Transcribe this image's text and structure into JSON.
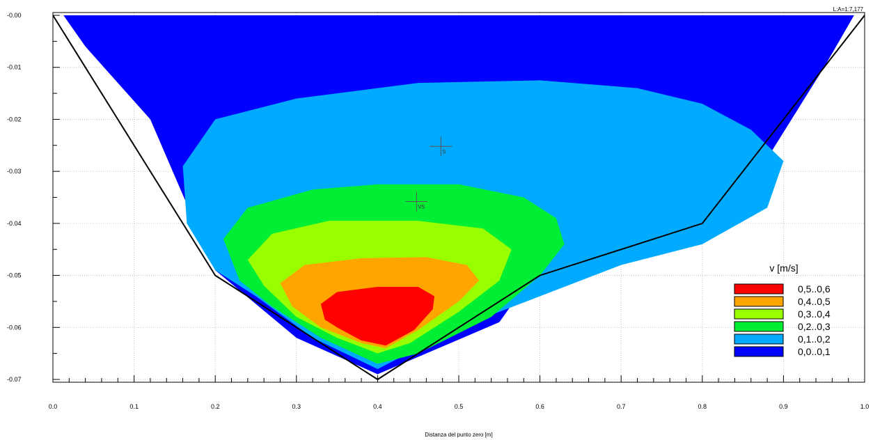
{
  "chart_data": {
    "type": "heatmap",
    "title": "",
    "xlabel": "Distanza del punto zero [m]",
    "ylabel": "",
    "xlim": [
      0.0,
      1.0
    ],
    "ylim": [
      -0.07,
      0.0
    ],
    "x_ticks": [
      "0.0",
      "0.1",
      "0.2",
      "0.3",
      "0.4",
      "0.5",
      "0.6",
      "0.7",
      "0.8",
      "0.9",
      "1.0"
    ],
    "y_ticks": [
      "-0.00",
      "-0.01",
      "-0.02",
      "-0.03",
      "-0.04",
      "-0.05",
      "-0.06",
      "-0.07"
    ],
    "grid": true,
    "scale_label": "L:A=1:7,177",
    "cross_section": {
      "x": [
        0.0,
        0.2,
        0.4,
        0.6,
        0.8,
        1.0
      ],
      "y": [
        0.0,
        -0.05,
        -0.07,
        -0.05,
        -0.04,
        0.0
      ]
    },
    "legend": {
      "title": "v  [m/s]",
      "placement": "right",
      "entries": [
        {
          "label": "0,5..0,6",
          "color": "#ff0000"
        },
        {
          "label": "0,4..0,5",
          "color": "#ffa500"
        },
        {
          "label": "0,3..0,4",
          "color": "#99ff00"
        },
        {
          "label": "0,2..0,3",
          "color": "#00ee33"
        },
        {
          "label": "0,1..0,2",
          "color": "#00aaff"
        },
        {
          "label": "0,0..0,1",
          "color": "#0000ff"
        }
      ]
    },
    "bands": [
      {
        "range": "0,0..0,1",
        "color": "#0000ff",
        "outline": [
          [
            0.013,
            0.0
          ],
          [
            0.987,
            0.0
          ],
          [
            0.95,
            -0.01
          ],
          [
            0.87,
            -0.03
          ],
          [
            0.8,
            -0.041
          ],
          [
            0.6,
            -0.048
          ],
          [
            0.55,
            -0.059
          ],
          [
            0.4,
            -0.069
          ],
          [
            0.3,
            -0.062
          ],
          [
            0.2,
            -0.049
          ],
          [
            0.12,
            -0.02
          ],
          [
            0.04,
            -0.006
          ]
        ]
      },
      {
        "range": "0,1..0,2",
        "color": "#00aaff",
        "outline": [
          [
            0.16,
            -0.029
          ],
          [
            0.2,
            -0.02
          ],
          [
            0.3,
            -0.016
          ],
          [
            0.45,
            -0.013
          ],
          [
            0.6,
            -0.0125
          ],
          [
            0.72,
            -0.014
          ],
          [
            0.8,
            -0.017
          ],
          [
            0.86,
            -0.022
          ],
          [
            0.9,
            -0.028
          ],
          [
            0.88,
            -0.037
          ],
          [
            0.8,
            -0.044
          ],
          [
            0.7,
            -0.048
          ],
          [
            0.6,
            -0.054
          ],
          [
            0.5,
            -0.06
          ],
          [
            0.4,
            -0.068
          ],
          [
            0.32,
            -0.062
          ],
          [
            0.25,
            -0.054
          ],
          [
            0.2,
            -0.049
          ],
          [
            0.165,
            -0.04
          ]
        ]
      },
      {
        "range": "0,2..0,3",
        "color": "#00ee33",
        "outline": [
          [
            0.21,
            -0.043
          ],
          [
            0.24,
            -0.037
          ],
          [
            0.32,
            -0.0335
          ],
          [
            0.4,
            -0.0325
          ],
          [
            0.5,
            -0.0325
          ],
          [
            0.58,
            -0.035
          ],
          [
            0.62,
            -0.039
          ],
          [
            0.63,
            -0.044
          ],
          [
            0.6,
            -0.05
          ],
          [
            0.54,
            -0.058
          ],
          [
            0.45,
            -0.065
          ],
          [
            0.4,
            -0.067
          ],
          [
            0.33,
            -0.062
          ],
          [
            0.27,
            -0.056
          ],
          [
            0.23,
            -0.051
          ]
        ]
      },
      {
        "range": "0,3..0,4",
        "color": "#99ff00",
        "outline": [
          [
            0.24,
            -0.047
          ],
          [
            0.27,
            -0.042
          ],
          [
            0.34,
            -0.0395
          ],
          [
            0.45,
            -0.0395
          ],
          [
            0.53,
            -0.041
          ],
          [
            0.565,
            -0.045
          ],
          [
            0.55,
            -0.051
          ],
          [
            0.5,
            -0.057
          ],
          [
            0.44,
            -0.063
          ],
          [
            0.4,
            -0.065
          ],
          [
            0.35,
            -0.062
          ],
          [
            0.3,
            -0.058
          ],
          [
            0.26,
            -0.052
          ]
        ]
      },
      {
        "range": "0,4..0,5",
        "color": "#ffa500",
        "outline": [
          [
            0.28,
            -0.0515
          ],
          [
            0.31,
            -0.048
          ],
          [
            0.38,
            -0.0467
          ],
          [
            0.46,
            -0.0465
          ],
          [
            0.51,
            -0.048
          ],
          [
            0.525,
            -0.051
          ],
          [
            0.5,
            -0.055
          ],
          [
            0.45,
            -0.0605
          ],
          [
            0.41,
            -0.064
          ],
          [
            0.38,
            -0.063
          ],
          [
            0.33,
            -0.06
          ],
          [
            0.295,
            -0.056
          ]
        ]
      },
      {
        "range": "0,5..0,6",
        "color": "#ff0000",
        "outline": [
          [
            0.33,
            -0.0555
          ],
          [
            0.35,
            -0.0532
          ],
          [
            0.4,
            -0.0522
          ],
          [
            0.45,
            -0.0522
          ],
          [
            0.47,
            -0.054
          ],
          [
            0.468,
            -0.0565
          ],
          [
            0.445,
            -0.0605
          ],
          [
            0.41,
            -0.0635
          ],
          [
            0.38,
            -0.0625
          ],
          [
            0.35,
            -0.06
          ],
          [
            0.335,
            -0.0585
          ]
        ]
      }
    ],
    "markers": [
      {
        "label": "s",
        "x": 0.478,
        "y": -0.0252
      },
      {
        "label": "vs",
        "x": 0.448,
        "y": -0.0358
      }
    ]
  }
}
